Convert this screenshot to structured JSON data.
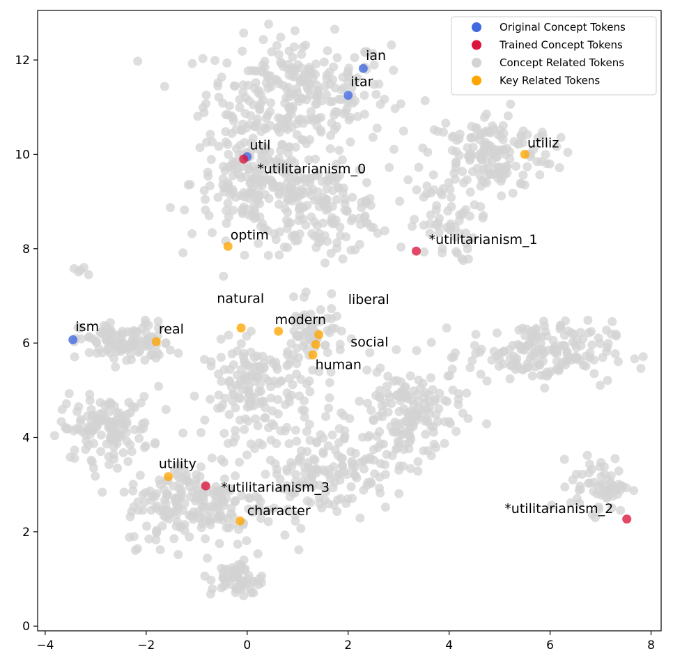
{
  "chart_data": {
    "type": "scatter",
    "xlim": [
      -4.15,
      8.2
    ],
    "ylim": [
      -0.1,
      13.05
    ],
    "xticks": [
      -4,
      -2,
      0,
      2,
      4,
      6,
      8
    ],
    "yticks": [
      0,
      2,
      4,
      6,
      8,
      10,
      12
    ],
    "xtick_labels": [
      "−4",
      "−2",
      "0",
      "2",
      "4",
      "6",
      "8"
    ],
    "ytick_labels": [
      "0",
      "2",
      "4",
      "6",
      "8",
      "10",
      "12"
    ],
    "title": "",
    "xlabel": "",
    "ylabel": "",
    "legend": [
      {
        "label": "Original Concept Tokens",
        "color": "#4169e1"
      },
      {
        "label": "Trained Concept Tokens",
        "color": "#dc143c"
      },
      {
        "label": "Concept Related Tokens",
        "color": "#d3d3d3"
      },
      {
        "label": "Key Related Tokens",
        "color": "#ffa500"
      }
    ],
    "legend_position": "top-right",
    "background_clusters": [
      {
        "cx": 1.0,
        "cy": 11.3,
        "sx": 1.4,
        "sy": 0.9,
        "n": 260
      },
      {
        "cx": 0.2,
        "cy": 9.4,
        "sx": 1.0,
        "sy": 0.9,
        "n": 200
      },
      {
        "cx": 1.5,
        "cy": 8.8,
        "sx": 1.0,
        "sy": 0.7,
        "n": 140
      },
      {
        "cx": 4.8,
        "cy": 10.0,
        "sx": 1.0,
        "sy": 0.7,
        "n": 160
      },
      {
        "cx": 3.9,
        "cy": 8.5,
        "sx": 0.5,
        "sy": 0.6,
        "n": 50
      },
      {
        "cx": -2.4,
        "cy": 6.0,
        "sx": 0.7,
        "sy": 0.35,
        "n": 110
      },
      {
        "cx": -2.8,
        "cy": 4.2,
        "sx": 0.7,
        "sy": 0.5,
        "n": 130
      },
      {
        "cx": 0.2,
        "cy": 5.0,
        "sx": 0.8,
        "sy": 0.8,
        "n": 160
      },
      {
        "cx": 1.3,
        "cy": 6.2,
        "sx": 0.5,
        "sy": 0.5,
        "n": 60
      },
      {
        "cx": 3.2,
        "cy": 4.5,
        "sx": 0.8,
        "sy": 0.8,
        "n": 160
      },
      {
        "cx": 5.8,
        "cy": 5.8,
        "sx": 1.1,
        "sy": 0.5,
        "n": 170
      },
      {
        "cx": 7.0,
        "cy": 3.0,
        "sx": 0.45,
        "sy": 0.45,
        "n": 60
      },
      {
        "cx": -1.0,
        "cy": 2.6,
        "sx": 1.1,
        "sy": 0.7,
        "n": 200
      },
      {
        "cx": 1.5,
        "cy": 3.3,
        "sx": 1.1,
        "sy": 0.7,
        "n": 150
      },
      {
        "cx": -0.2,
        "cy": 1.0,
        "sx": 0.4,
        "sy": 0.3,
        "n": 60
      },
      {
        "cx": -3.3,
        "cy": 7.5,
        "sx": 0.12,
        "sy": 0.12,
        "n": 5
      }
    ],
    "points": [
      {
        "label": "ian",
        "category": "original",
        "x": 2.3,
        "y": 11.82,
        "label_x": 2.35,
        "label_y": 12.0
      },
      {
        "label": "itar",
        "category": "original",
        "x": 2.0,
        "y": 11.25,
        "label_x": 2.05,
        "label_y": 11.45
      },
      {
        "label": "util",
        "category": "original",
        "x": 0.0,
        "y": 9.95,
        "label_x": 0.05,
        "label_y": 10.1
      },
      {
        "label": "ism",
        "category": "original",
        "x": -3.45,
        "y": 6.07,
        "label_x": -3.4,
        "label_y": 6.25
      },
      {
        "label": "*utilitarianism_0",
        "category": "trained",
        "x": -0.07,
        "y": 9.9,
        "label_x": 0.2,
        "label_y": 9.6
      },
      {
        "label": "*utilitarianism_1",
        "category": "trained",
        "x": 3.35,
        "y": 7.95,
        "label_x": 3.6,
        "label_y": 8.1
      },
      {
        "label": "*utilitarianism_3",
        "category": "trained",
        "x": -0.82,
        "y": 2.97,
        "label_x": -0.52,
        "label_y": 2.85
      },
      {
        "label": "*utilitarianism_2",
        "category": "trained",
        "x": 7.52,
        "y": 2.27,
        "label_x": 5.1,
        "label_y": 2.4
      },
      {
        "label": "utiliz",
        "category": "key",
        "x": 5.5,
        "y": 10.0,
        "label_x": 5.55,
        "label_y": 10.15
      },
      {
        "label": "optim",
        "category": "key",
        "x": -0.38,
        "y": 8.05,
        "label_x": -0.33,
        "label_y": 8.2
      },
      {
        "label": "real",
        "category": "key",
        "x": -1.8,
        "y": 6.03,
        "label_x": -1.75,
        "label_y": 6.2
      },
      {
        "label": "natural",
        "category": "key",
        "x": -0.12,
        "y": 6.32,
        "label_x": -0.6,
        "label_y": 6.85
      },
      {
        "label": "modern",
        "category": "key",
        "x": 0.62,
        "y": 6.25,
        "label_x": 0.55,
        "label_y": 6.4
      },
      {
        "label": "liberal",
        "category": "key",
        "x": 1.42,
        "y": 6.18,
        "label_x": 2.0,
        "label_y": 6.83
      },
      {
        "label": "social",
        "category": "key",
        "x": 1.36,
        "y": 5.97,
        "label_x": 2.05,
        "label_y": 5.93
      },
      {
        "label": "human",
        "category": "key",
        "x": 1.3,
        "y": 5.75,
        "label_x": 1.35,
        "label_y": 5.45
      },
      {
        "label": "utility",
        "category": "key",
        "x": -1.56,
        "y": 3.17,
        "label_x": -1.75,
        "label_y": 3.35
      },
      {
        "label": "character",
        "category": "key",
        "x": -0.14,
        "y": 2.23,
        "label_x": 0.0,
        "label_y": 2.35
      }
    ]
  }
}
